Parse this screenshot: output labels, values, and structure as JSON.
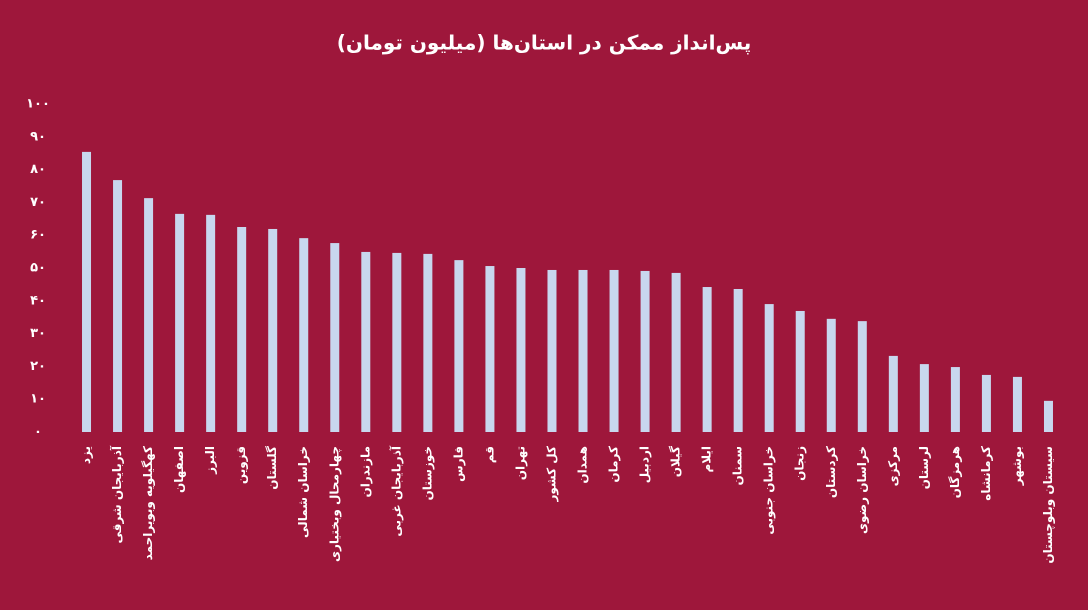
{
  "chart_data": {
    "type": "bar",
    "title": "پس‌انداز ممکن در استان‌ها (میلیون تومان)",
    "categories": [
      "یزد",
      "آذربایجان شرقی",
      "کهگیلویه وبویراحمد",
      "اصفهان",
      "البرز",
      "قزوین",
      "گلستان",
      "خراسان شمالی",
      "چهارمحال وبختیاری",
      "مازندران",
      "آذربایجان غربی",
      "خوزستان",
      "فارس",
      "قم",
      "تهران",
      "کل کشور",
      "همدان",
      "کرمان",
      "اردبیل",
      "گیلان",
      "ایلام",
      "سمنان",
      "خراسان جنوبی",
      "زنجان",
      "کردستان",
      "خراسان رضوی",
      "مرکزی",
      "لرستان",
      "هرمزگان",
      "کرمانشاه",
      "بوشهر",
      "سیستان وبلوچستان"
    ],
    "values": [
      85.4,
      76.8,
      71.3,
      66.5,
      66.2,
      62.5,
      61.9,
      59.1,
      57.6,
      54.9,
      54.6,
      54.3,
      52.4,
      50.6,
      50.0,
      49.4,
      49.4,
      49.4,
      49.1,
      48.5,
      44.2,
      43.6,
      39.0,
      36.9,
      34.5,
      33.8,
      23.2,
      20.7,
      19.8,
      17.4,
      16.8,
      9.5
    ],
    "color": "#c8d7ee",
    "ylim": [
      0,
      100
    ],
    "yticks": [
      {
        "value": 0,
        "label": "۰"
      },
      {
        "value": 10,
        "label": "۱۰"
      },
      {
        "value": 20,
        "label": "۲۰"
      },
      {
        "value": 30,
        "label": "۳۰"
      },
      {
        "value": 40,
        "label": "۴۰"
      },
      {
        "value": 50,
        "label": "۵۰"
      },
      {
        "value": 60,
        "label": "۶۰"
      },
      {
        "value": 70,
        "label": "۷۰"
      },
      {
        "value": 80,
        "label": "۸۰"
      },
      {
        "value": 90,
        "label": "۹۰"
      },
      {
        "value": 100,
        "label": "۱۰۰"
      }
    ],
    "grid": false
  }
}
